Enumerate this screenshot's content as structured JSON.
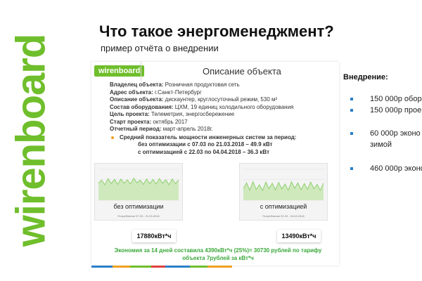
{
  "brand": {
    "logo_text": "wirenboard",
    "accent": "#6fbe2b"
  },
  "slide": {
    "title": "Что такое энергоменеджмент?",
    "subtitle": "пример отчёта о внедрении"
  },
  "report": {
    "badge": "wirenboard",
    "heading": "Описание объекта",
    "rows": [
      {
        "label": "Владелец объекта:",
        "value": " Розничная продуктовая сеть"
      },
      {
        "label": "Адрес объекта:",
        "value": " г.Санкт-Петербург"
      },
      {
        "label": "Описание объекта:",
        "value": " дискаунтер, круглосуточный режим, 530 м²"
      },
      {
        "label": "Состав оборудования:",
        "value": " ЦХМ, 19 единиц холодильного оборудования"
      },
      {
        "label": "Цель проекта:",
        "value": " Телеметрия, энергосбережение"
      },
      {
        "label": "Старт проекта:",
        "value": " октябрь 2017"
      },
      {
        "label": "Отчетный период:",
        "value": " март-апрель 2018г."
      }
    ],
    "bullet": "Средний показатель мощности инженерных систем за период:",
    "line1": "без оптимизации с 07.03 по 21.03.2018 – 49.9 кВт",
    "line2": "с оптимизацией с 22.03 по 04.04.2018 – 36.3 кВт",
    "chart_left": {
      "caption": "без оптимизации",
      "meta": "Потребление 07.03 - 21.03.2018",
      "total": "17880кВт*ч"
    },
    "chart_right": {
      "caption": "с оптимизацией",
      "meta": "Потребление 22.03 - 04.04.2018",
      "total": "13490кВт*ч"
    },
    "economy": "Экономия за 14 дней составила 4390кВт*ч (25%)= 30730 рублей по тарифу объекта 7рублей за кВт*ч"
  },
  "implementation": {
    "title": "Внедрение:",
    "items": [
      {
        "text": "150 000р обор"
      },
      {
        "text": "150 000р прое"
      },
      {
        "text": "60 000р эконо"
      },
      {
        "text": "зимой"
      },
      {
        "text": "460 000р эконо"
      }
    ],
    "bullet_color": "#2a7fc9"
  },
  "chart_data": [
    {
      "type": "line",
      "title": "",
      "series": [
        {
          "values": [
            44,
            52,
            40,
            56,
            43,
            54,
            41,
            55,
            44,
            53,
            42,
            57,
            45,
            52,
            41,
            55,
            43,
            54,
            42,
            56,
            44,
            53,
            40,
            55,
            43,
            52
          ]
        }
      ],
      "ylim": [
        0,
        80
      ],
      "color": "#8fcf6f"
    },
    {
      "type": "line",
      "title": "",
      "series": [
        {
          "values": [
            30,
            45,
            26,
            48,
            28,
            40,
            25,
            47,
            30,
            44,
            27,
            46,
            29,
            42,
            26,
            48,
            31,
            45,
            27,
            43,
            28,
            47,
            30,
            41,
            26,
            44
          ]
        }
      ],
      "ylim": [
        0,
        80
      ],
      "color": "#8fcf6f"
    }
  ]
}
